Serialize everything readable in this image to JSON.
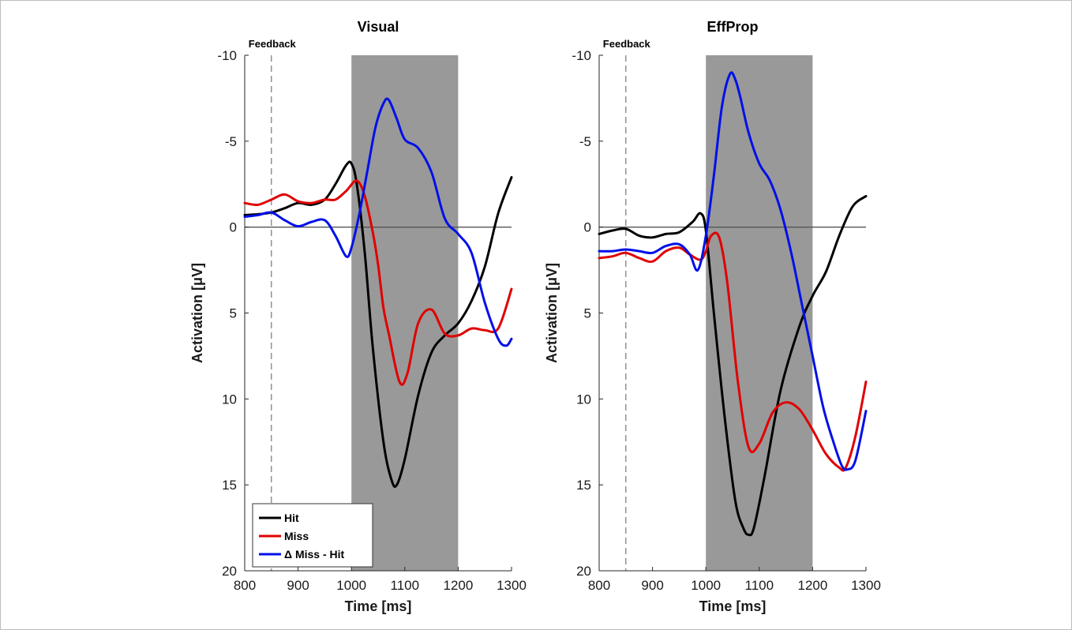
{
  "chart_data": [
    {
      "type": "line",
      "title": "Visual",
      "xlabel": "Time [ms]",
      "ylabel": "Activation [μV]",
      "xlim": [
        800,
        1300
      ],
      "ylim": [
        -10,
        20
      ],
      "y_reversed": true,
      "xticks": [
        "800",
        "900",
        "1000",
        "1100",
        "1200",
        "1300"
      ],
      "yticks": [
        "-10",
        "-5",
        "0",
        "5",
        "10",
        "15",
        "20"
      ],
      "shaded_window": [
        1000,
        1200
      ],
      "feedback_line": 850,
      "feedback_label": "Feedback",
      "zero_line": 0,
      "legend": {
        "position": "bottom-left",
        "entries": [
          "Hit",
          "Miss",
          "Δ Miss - Hit"
        ]
      },
      "series": [
        {
          "name": "Hit",
          "color": "#000000",
          "x": [
            800,
            825,
            850,
            875,
            900,
            925,
            950,
            970,
            990,
            1000,
            1010,
            1025,
            1040,
            1060,
            1075,
            1085,
            1100,
            1125,
            1150,
            1175,
            1200,
            1225,
            1250,
            1275,
            1300
          ],
          "y": [
            -0.7,
            -0.75,
            -0.85,
            -1.1,
            -1.4,
            -1.3,
            -1.6,
            -2.5,
            -3.6,
            -3.7,
            -2.5,
            1.5,
            7,
            12.5,
            14.7,
            15,
            13.5,
            9.8,
            7.3,
            6.3,
            5.6,
            4.3,
            2.3,
            -0.8,
            -2.9
          ]
        },
        {
          "name": "Miss",
          "color": "#e00000",
          "x": [
            800,
            825,
            850,
            875,
            900,
            925,
            950,
            970,
            990,
            1010,
            1025,
            1040,
            1050,
            1060,
            1070,
            1090,
            1105,
            1125,
            1150,
            1175,
            1200,
            1225,
            1250,
            1275,
            1300
          ],
          "y": [
            -1.4,
            -1.3,
            -1.6,
            -1.9,
            -1.5,
            -1.4,
            -1.6,
            -1.6,
            -2.1,
            -2.7,
            -1.8,
            0.3,
            2.2,
            4.7,
            6.2,
            9.0,
            8.5,
            5.6,
            4.8,
            6.2,
            6.3,
            5.9,
            6.0,
            5.9,
            3.6
          ]
        },
        {
          "name": "Δ Miss - Hit",
          "color": "#0010e8",
          "x": [
            800,
            825,
            850,
            875,
            900,
            925,
            950,
            970,
            990,
            1000,
            1015,
            1030,
            1045,
            1060,
            1070,
            1085,
            1100,
            1125,
            1150,
            1175,
            1200,
            1225,
            1250,
            1275,
            1290,
            1300
          ],
          "y": [
            -0.6,
            -0.7,
            -0.85,
            -0.4,
            -0.05,
            -0.3,
            -0.4,
            0.5,
            1.7,
            1.2,
            -0.8,
            -3.3,
            -5.8,
            -7.2,
            -7.4,
            -6.3,
            -5.1,
            -4.6,
            -3.2,
            -0.5,
            0.4,
            1.5,
            4.4,
            6.5,
            6.9,
            6.5
          ]
        }
      ]
    },
    {
      "type": "line",
      "title": "EffProp",
      "xlabel": "Time [ms]",
      "ylabel": "Activation [μV]",
      "xlim": [
        800,
        1300
      ],
      "ylim": [
        -10,
        20
      ],
      "y_reversed": true,
      "xticks": [
        "800",
        "900",
        "1000",
        "1100",
        "1200",
        "1300"
      ],
      "yticks": [
        "-10",
        "-5",
        "0",
        "5",
        "10",
        "15",
        "20"
      ],
      "shaded_window": [
        1000,
        1200
      ],
      "feedback_line": 850,
      "feedback_label": "Feedback",
      "zero_line": 0,
      "series": [
        {
          "name": "Hit",
          "color": "#000000",
          "x": [
            800,
            825,
            850,
            875,
            900,
            925,
            950,
            975,
            990,
            1000,
            1015,
            1035,
            1055,
            1070,
            1080,
            1090,
            1110,
            1140,
            1175,
            1200,
            1225,
            1250,
            1275,
            1300
          ],
          "y": [
            0.4,
            0.2,
            0.1,
            0.5,
            0.6,
            0.4,
            0.3,
            -0.3,
            -0.8,
            0.2,
            5.0,
            11.0,
            15.9,
            17.5,
            17.9,
            17.5,
            14.5,
            9.5,
            5.8,
            4.0,
            2.6,
            0.5,
            -1.2,
            -1.8
          ]
        },
        {
          "name": "Miss",
          "color": "#e00000",
          "x": [
            800,
            825,
            850,
            875,
            900,
            925,
            950,
            970,
            990,
            1000,
            1010,
            1025,
            1040,
            1060,
            1080,
            1100,
            1125,
            1150,
            1175,
            1200,
            1225,
            1250,
            1262,
            1280,
            1300
          ],
          "y": [
            1.8,
            1.7,
            1.5,
            1.8,
            2.0,
            1.4,
            1.2,
            1.6,
            1.9,
            1.4,
            0.5,
            0.6,
            3.2,
            9.0,
            12.8,
            12.6,
            10.8,
            10.2,
            10.6,
            11.8,
            13.2,
            14.0,
            14.0,
            12.2,
            9.0
          ]
        },
        {
          "name": "Δ Miss - Hit",
          "color": "#0010e8",
          "x": [
            800,
            825,
            850,
            875,
            900,
            925,
            950,
            970,
            985,
            1000,
            1015,
            1030,
            1045,
            1055,
            1065,
            1080,
            1100,
            1120,
            1140,
            1160,
            1180,
            1200,
            1220,
            1240,
            1255,
            1265,
            1280,
            1300
          ],
          "y": [
            1.4,
            1.4,
            1.3,
            1.4,
            1.5,
            1.1,
            1.0,
            1.6,
            2.5,
            0.5,
            -3.0,
            -7.0,
            -8.9,
            -8.6,
            -7.5,
            -5.5,
            -3.7,
            -2.7,
            -1.0,
            1.5,
            4.5,
            7.5,
            10.5,
            12.6,
            13.9,
            14.1,
            13.6,
            10.7
          ]
        }
      ]
    }
  ]
}
